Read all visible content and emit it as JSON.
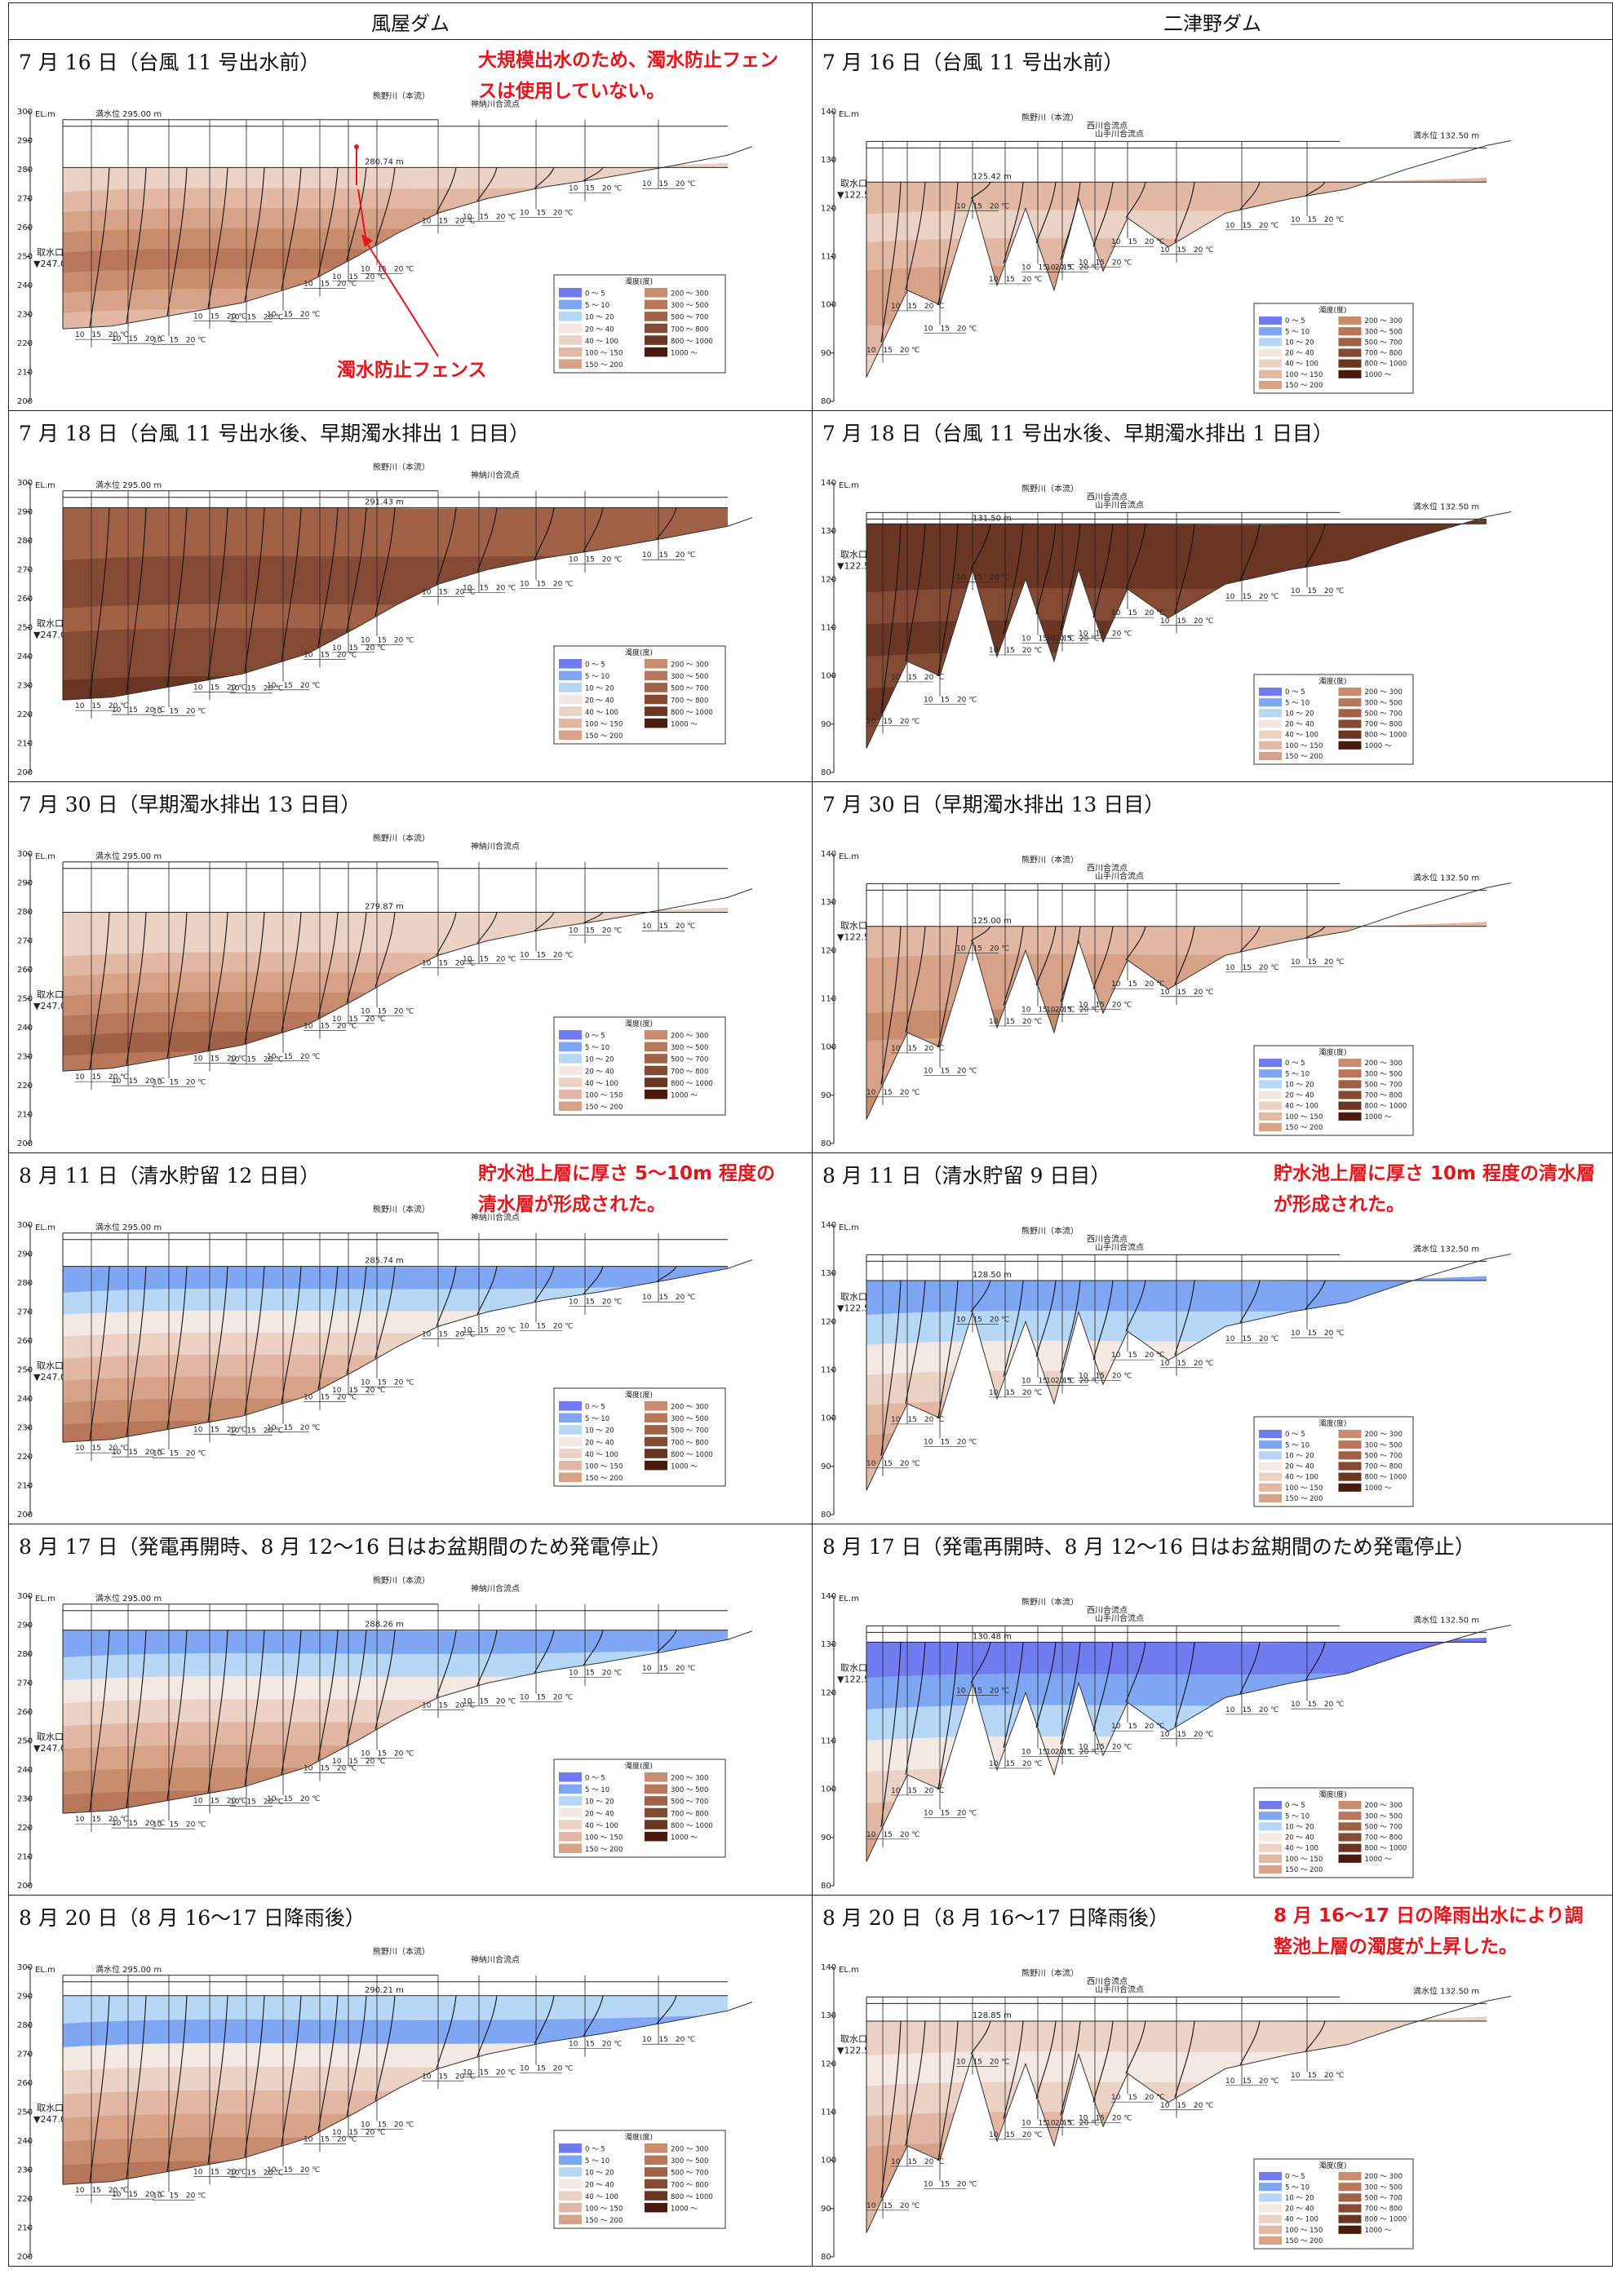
{
  "columns": [
    {
      "title": "風屋ダム"
    },
    {
      "title": "二津野ダム"
    }
  ],
  "rows": [
    {
      "left": {
        "caption": "7 月 16 日（台風 11 号出水前）",
        "level": 280.74,
        "level_label": "280.74 m",
        "annotation": "大規模出水のため、濁水防止フェンスは使用していない。",
        "fence_label": "濁水防止フェンス"
      },
      "right": {
        "caption": "7 月 16 日（台風 11 号出水前）",
        "level": 125.42,
        "level_label": "125.42 m"
      },
      "profile": "pre"
    },
    {
      "left": {
        "caption": "7 月 18 日（台風 11 号出水後、早期濁水排出 1 日目）",
        "level": 291.43,
        "level_label": "291.43 m"
      },
      "right": {
        "caption": "7 月 18 日（台風 11 号出水後、早期濁水排出 1 日目）",
        "level": 131.5,
        "level_label": "131.50 m"
      },
      "profile": "flood"
    },
    {
      "left": {
        "caption": "7 月 30 日（早期濁水排出 13 日目）",
        "level": 279.87,
        "level_label": "279.87 m"
      },
      "right": {
        "caption": "7 月 30 日（早期濁水排出 13 日目）",
        "level": 125.0,
        "level_label": "125.00 m"
      },
      "profile": "discharge"
    },
    {
      "left": {
        "caption": "8 月 11 日（清水貯留 12 日目）",
        "level": 285.74,
        "level_label": "285.74 m",
        "annotation": "貯水池上層に厚さ 5〜10m 程度の清水層が形成された。"
      },
      "right": {
        "caption": "8 月 11 日（清水貯留 9 日目）",
        "level": 128.5,
        "level_label": "128.50 m",
        "annotation": "貯水池上層に厚さ 10m 程度の清水層が形成された。"
      },
      "profile": "clear"
    },
    {
      "left": {
        "caption": "8 月 17 日（発電再開時、8 月 12〜16 日はお盆期間のため発電停止）",
        "level": 288.26,
        "level_label": "288.26 m"
      },
      "right": {
        "caption": "8 月 17 日（発電再開時、8 月 12〜16 日はお盆期間のため発電停止）",
        "level": 130.48,
        "level_label": "130.48 m"
      },
      "profile": "clear2"
    },
    {
      "left": {
        "caption": "8 月 20 日（8 月 16〜17 日降雨後）",
        "level": 290.21,
        "level_label": "290.21 m"
      },
      "right": {
        "caption": "8 月 20 日（8 月 16〜17 日降雨後）",
        "level": 128.85,
        "level_label": "128.85 m",
        "annotation": "8 月 16〜17 日の降雨出水により調整池上層の濁度が上昇した。"
      },
      "profile": "rain"
    }
  ],
  "left_plot": {
    "elev_unit": "EL.m",
    "y_ticks": [
      200,
      210,
      220,
      230,
      240,
      250,
      260,
      270,
      280,
      290,
      300
    ],
    "full_level_label": "満水位 295.00 m",
    "full_level": 295.0,
    "intake_label": "取水口",
    "intake_level_label": "▼247.00m",
    "intake_level": 247.0,
    "river_label": "熊野川（本流）",
    "confluence_label": "神納川合流点"
  },
  "right_plot": {
    "elev_unit": "EL.m",
    "y_ticks": [
      80,
      90,
      100,
      110,
      120,
      130,
      140
    ],
    "full_level_label": "満水位 132.50 m",
    "full_level": 132.5,
    "intake_label": "取水口",
    "intake_level_label": "▼122.50m",
    "intake_level": 122.5,
    "river_label": "熊野川（本流）",
    "confluence_label": "西川合流点",
    "confluence2_label": "山手川合流点"
  },
  "temp_scale_label": "10　15　20 ℃",
  "legend": {
    "title": "濁度(度)",
    "items": [
      {
        "label": "0 〜 5",
        "color": "#6f7bef"
      },
      {
        "label": "5 〜 10",
        "color": "#7fa6f2"
      },
      {
        "label": "10 〜 20",
        "color": "#b7d7f6"
      },
      {
        "label": "20 〜 40",
        "color": "#f4e8e2"
      },
      {
        "label": "40 〜 100",
        "color": "#ecd2c4"
      },
      {
        "label": "100 〜 150",
        "color": "#e2b8a4"
      },
      {
        "label": "150 〜 200",
        "color": "#d7a288"
      },
      {
        "label": "200 〜 300",
        "color": "#c88c6e"
      },
      {
        "label": "300 〜 500",
        "color": "#b8775a"
      },
      {
        "label": "500 〜 700",
        "color": "#a16146"
      },
      {
        "label": "700 〜 800",
        "color": "#854a33"
      },
      {
        "label": "800 〜 1000",
        "color": "#6a3522"
      },
      {
        "label": "1000 〜",
        "color": "#4a1a0f"
      }
    ]
  }
}
